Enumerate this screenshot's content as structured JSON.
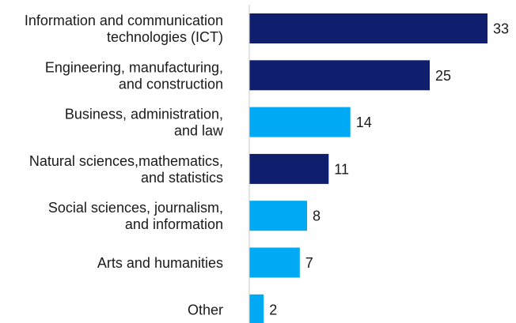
{
  "chart_data": {
    "type": "bar",
    "orientation": "horizontal",
    "categories": [
      [
        "Information and communication",
        "technologies (ICT)"
      ],
      [
        "Engineering, manufacturing,",
        "and construction"
      ],
      [
        "Business, administration,",
        "and law"
      ],
      [
        "Natural sciences,mathematics,",
        "and statistics"
      ],
      [
        "Social sciences, journalism,",
        "and information"
      ],
      [
        "Arts and humanities"
      ],
      [
        "Other"
      ]
    ],
    "values": [
      33,
      25,
      14,
      11,
      8,
      7,
      2
    ],
    "value_labels": [
      "33",
      "25",
      "14",
      "11",
      "8",
      "7",
      "2"
    ],
    "bar_colors": [
      "#0f1f6e",
      "#0f1f6e",
      "#00a9f4",
      "#0f1f6e",
      "#00a9f4",
      "#00a9f4",
      "#00a9f4"
    ],
    "axis_color": "#c8c8c8",
    "xlim": [
      0,
      33
    ],
    "grid": false,
    "title": "",
    "xlabel": "",
    "ylabel": ""
  }
}
